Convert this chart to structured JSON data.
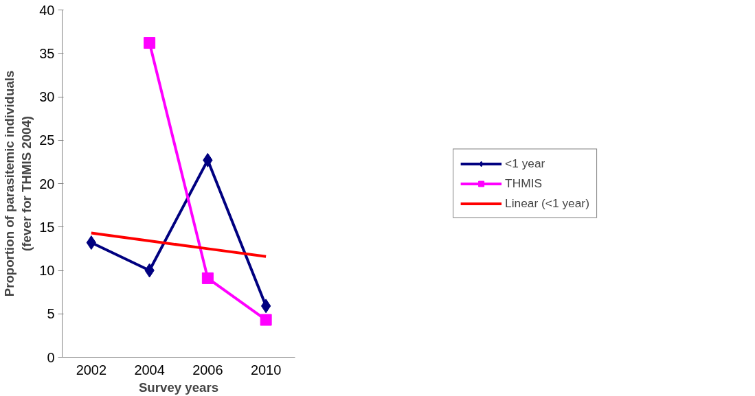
{
  "chart_data": {
    "type": "line",
    "xlabel": "Survey years",
    "ylabel": "Proportion of parasitemic individuals\n(fever for THMIS 2004)",
    "categories": [
      "2002",
      "2004",
      "2006",
      "2010"
    ],
    "series": [
      {
        "name": "<1 year",
        "color": "#000080",
        "values": [
          13.2,
          10.0,
          22.7,
          5.9
        ],
        "marker": "diamond"
      },
      {
        "name": "THMIS",
        "color": "#ff00ff",
        "values": [
          null,
          36.2,
          9.1,
          4.3
        ],
        "marker": "square"
      },
      {
        "name": "Linear (<1 year)",
        "color": "#ff0000",
        "values": [
          14.3,
          13.4,
          12.5,
          11.6
        ],
        "marker": "none"
      }
    ],
    "ylim": [
      0,
      40
    ],
    "yticks": [
      0,
      5,
      10,
      15,
      20,
      25,
      30,
      35,
      40
    ],
    "grid": false,
    "legend": "right",
    "line_style": "solid"
  }
}
